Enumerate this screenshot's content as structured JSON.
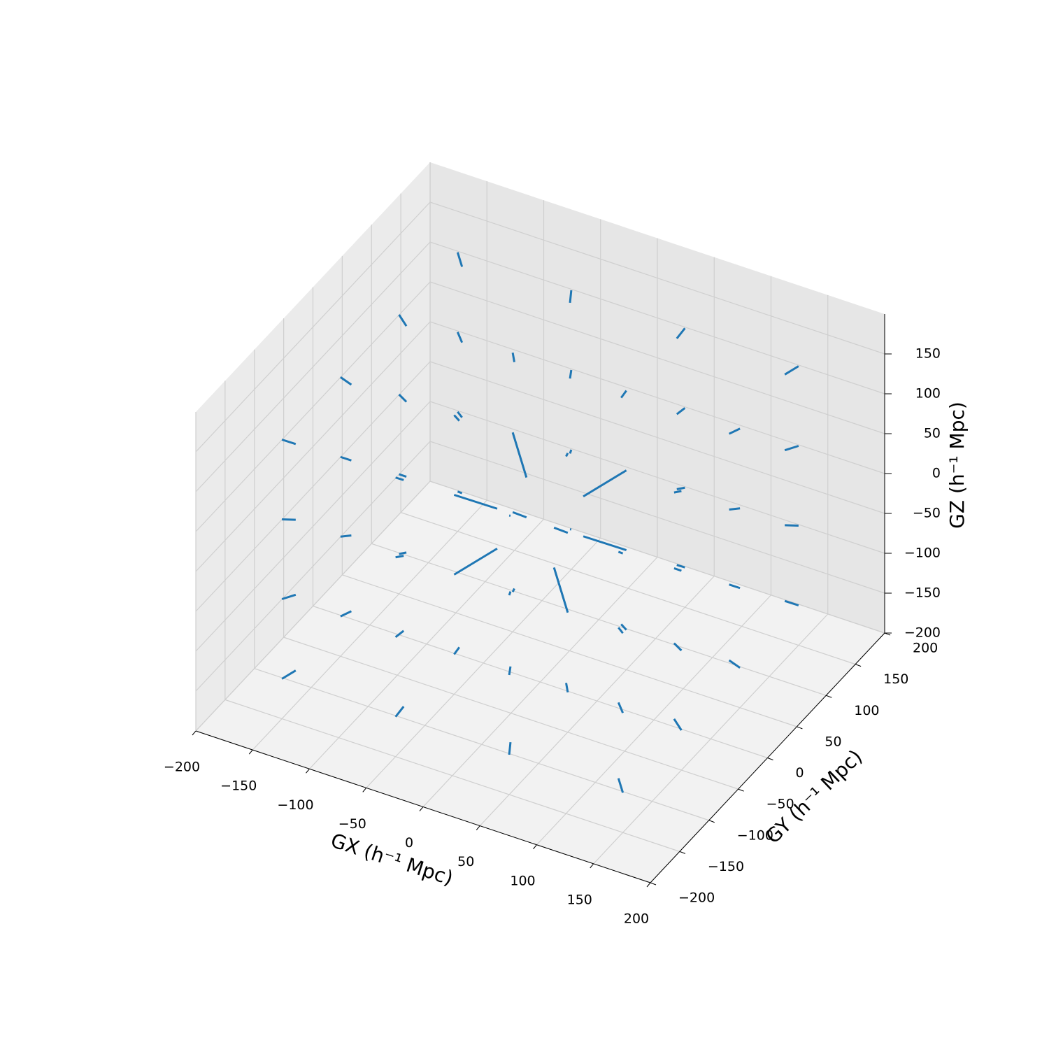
{
  "chart_data": {
    "type": "quiver3d",
    "xlabel": "GX (h⁻¹ Mpc)",
    "ylabel": "GY (h⁻¹ Mpc)",
    "zlabel": "GZ (h⁻¹ Mpc)",
    "color": "#1f77b4",
    "grid": true,
    "xlim": [
      -200,
      200
    ],
    "ylim": [
      -200,
      200
    ],
    "zlim": [
      -200,
      200
    ],
    "xticks": [
      {
        "value": -200,
        "label": "−200"
      },
      {
        "value": -150,
        "label": "−150"
      },
      {
        "value": -100,
        "label": "−100"
      },
      {
        "value": -50,
        "label": "−50"
      },
      0,
      50,
      100,
      150,
      200
    ],
    "yticks": [
      {
        "value": -200,
        "label": "−200"
      },
      {
        "value": -150,
        "label": "−150"
      },
      {
        "value": -100,
        "label": "−100"
      },
      {
        "value": -50,
        "label": "−50"
      },
      0,
      50,
      100,
      150,
      200
    ],
    "zticks": [
      {
        "value": -200,
        "label": "−200"
      },
      {
        "value": -150,
        "label": "−150"
      },
      {
        "value": -100,
        "label": "−100"
      },
      {
        "value": -50,
        "label": "−50"
      },
      0,
      50,
      100,
      150
    ],
    "x": [
      -150,
      -150,
      -150,
      -150,
      -150,
      -150,
      -150,
      -150,
      -150,
      -150,
      -150,
      -150,
      -150,
      -150,
      -150,
      -150,
      -50,
      -50,
      -50,
      -50,
      -50,
      -50,
      -50,
      -50,
      -50,
      -50,
      -50,
      -50,
      -50,
      -50,
      -50,
      -50,
      50,
      50,
      50,
      50,
      50,
      50,
      50,
      50,
      50,
      50,
      50,
      50,
      50,
      50,
      50,
      50,
      150,
      150,
      150,
      150,
      150,
      150,
      150,
      150,
      150,
      150,
      150,
      150,
      150,
      150,
      150,
      150
    ],
    "y": [
      -150,
      -150,
      -150,
      -150,
      -50,
      -50,
      -50,
      -50,
      50,
      50,
      50,
      50,
      150,
      150,
      150,
      150,
      -150,
      -150,
      -150,
      -150,
      -50,
      -50,
      -50,
      -50,
      50,
      50,
      50,
      50,
      150,
      150,
      150,
      150,
      -150,
      -150,
      -150,
      -150,
      -50,
      -50,
      -50,
      -50,
      50,
      50,
      50,
      50,
      150,
      150,
      150,
      150,
      -150,
      -150,
      -150,
      -150,
      -50,
      -50,
      -50,
      -50,
      50,
      50,
      50,
      50,
      150,
      150,
      150,
      150
    ],
    "z": [
      -150,
      -50,
      50,
      150,
      -150,
      -50,
      50,
      150,
      -150,
      -50,
      50,
      150,
      -150,
      -50,
      50,
      150,
      -150,
      -50,
      50,
      150,
      -150,
      -50,
      50,
      150,
      -150,
      -50,
      50,
      150,
      -150,
      -50,
      50,
      150,
      -150,
      -50,
      50,
      150,
      -150,
      -50,
      50,
      150,
      -150,
      -50,
      50,
      150,
      -150,
      -50,
      50,
      150,
      -150,
      -50,
      50,
      150,
      -150,
      -50,
      50,
      150,
      -150,
      -50,
      50,
      150,
      -150,
      -50,
      50,
      150
    ],
    "u": [
      8,
      8,
      8,
      8,
      8,
      8,
      8,
      8,
      8,
      8,
      8,
      8,
      8,
      8,
      8,
      8,
      3,
      3,
      3,
      3,
      3,
      25,
      25,
      3,
      3,
      25,
      25,
      3,
      3,
      3,
      3,
      3,
      -3,
      -3,
      -3,
      -3,
      -3,
      -25,
      -25,
      -3,
      -3,
      -25,
      -25,
      -3,
      -3,
      -3,
      -3,
      -3,
      -8,
      -8,
      -8,
      -8,
      -8,
      -8,
      -8,
      -8,
      -8,
      -8,
      -8,
      -8,
      -8,
      -8,
      -8,
      -8
    ],
    "v": [
      8,
      8,
      8,
      8,
      3,
      3,
      3,
      3,
      -3,
      -3,
      -3,
      -3,
      -8,
      -8,
      -8,
      -8,
      8,
      8,
      8,
      8,
      3,
      25,
      25,
      3,
      -3,
      -25,
      -25,
      -3,
      -8,
      -8,
      -8,
      -8,
      8,
      8,
      8,
      8,
      3,
      25,
      25,
      3,
      -3,
      -25,
      -25,
      -3,
      -8,
      -8,
      -8,
      -8,
      8,
      8,
      8,
      8,
      3,
      3,
      3,
      3,
      -3,
      -3,
      -3,
      -3,
      -8,
      -8,
      -8,
      -8
    ],
    "w": [
      8,
      3,
      -3,
      -8,
      8,
      3,
      -3,
      -8,
      8,
      3,
      -3,
      -8,
      8,
      3,
      -3,
      -8,
      8,
      3,
      -3,
      -8,
      8,
      25,
      -25,
      -8,
      8,
      25,
      -25,
      -8,
      8,
      3,
      -3,
      -8,
      8,
      3,
      -3,
      -8,
      8,
      25,
      -25,
      -8,
      8,
      25,
      -25,
      -8,
      8,
      3,
      -3,
      -8,
      8,
      3,
      -3,
      -8,
      8,
      3,
      -3,
      -8,
      8,
      3,
      -3,
      -8,
      8,
      3,
      -3,
      -8
    ]
  }
}
